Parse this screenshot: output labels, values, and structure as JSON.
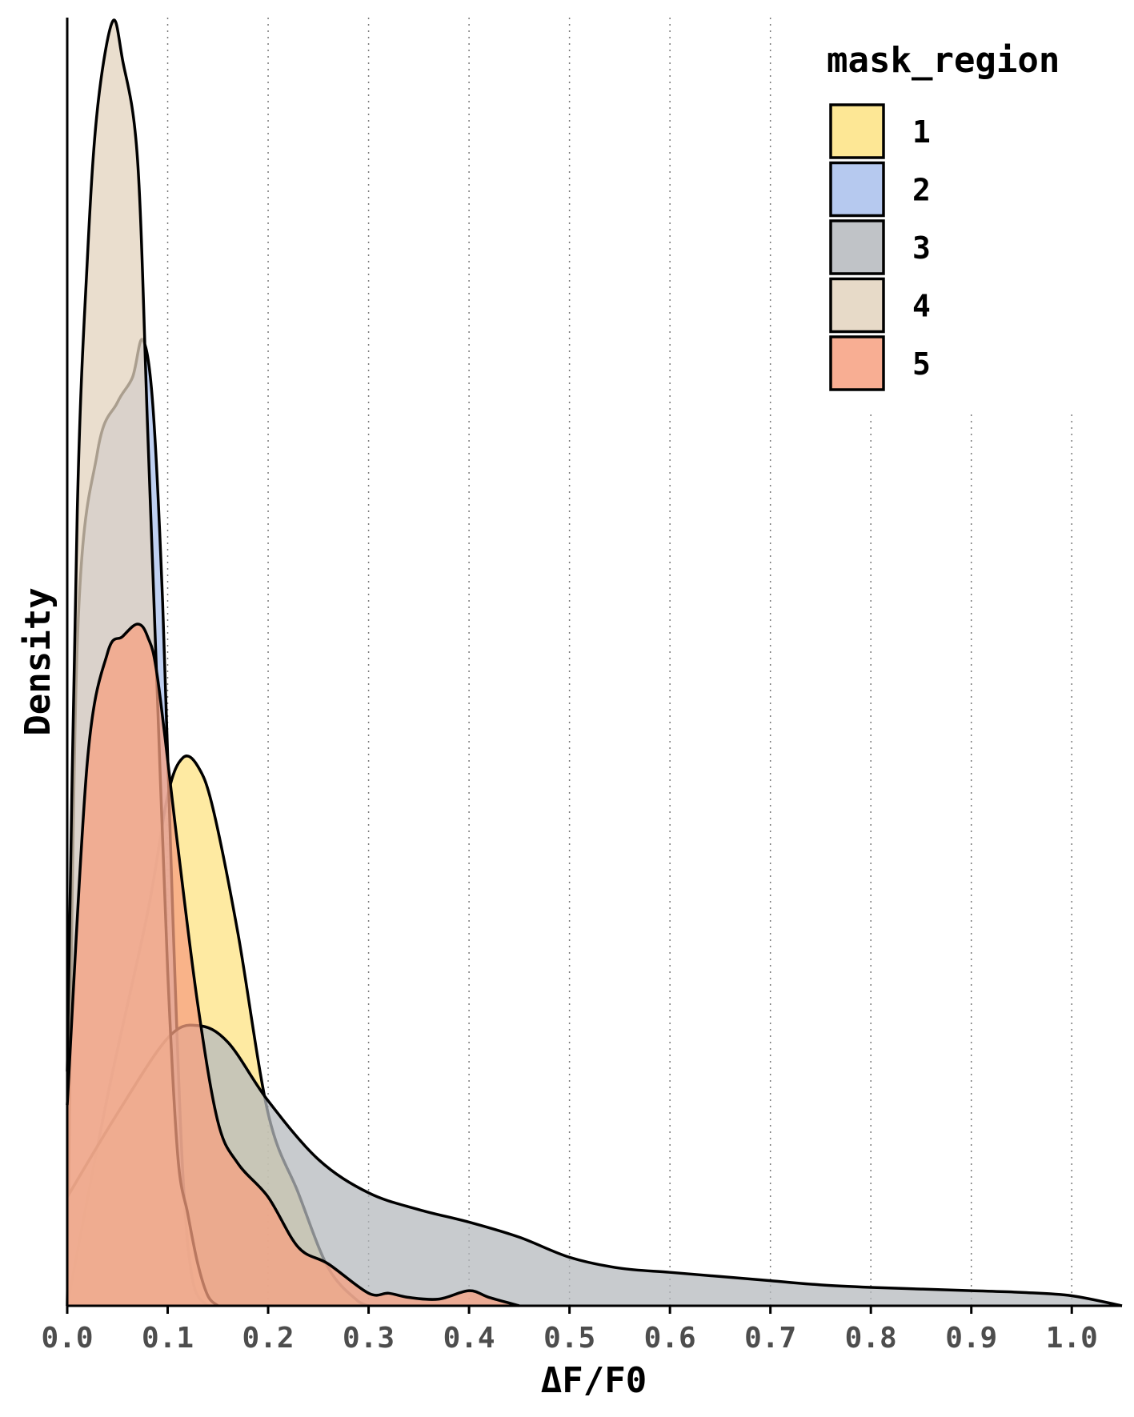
{
  "chart_data": {
    "type": "area",
    "xlabel": "ΔF/F0",
    "ylabel": "Density",
    "xlim": [
      0,
      1.05
    ],
    "ylim": [
      0,
      15.4
    ],
    "x_ticks": [
      "0.0",
      "0.1",
      "0.2",
      "0.3",
      "0.4",
      "0.5",
      "0.6",
      "0.7",
      "0.8",
      "0.9",
      "1.0"
    ],
    "y_ticks": [],
    "grid": "vertical dotted",
    "legend": {
      "title": "mask_region",
      "position": "top-right",
      "entries": [
        "1",
        "2",
        "3",
        "4",
        "5"
      ]
    },
    "series": [
      {
        "name": "1",
        "color": "#fde383",
        "x": [
          0,
          0.04,
          0.08,
          0.1,
          0.115,
          0.13,
          0.145,
          0.17,
          0.2,
          0.23,
          0.26,
          0.29,
          0.3
        ],
        "values": [
          0,
          2.5,
          4.7,
          6.1,
          6.55,
          6.45,
          5.95,
          4.45,
          2.3,
          1.35,
          0.45,
          0.05,
          0
        ]
      },
      {
        "name": "2",
        "color": "#a9c0ec",
        "x": [
          0,
          0.01,
          0.03,
          0.05,
          0.065,
          0.075,
          0.085,
          0.095,
          0.105,
          0.115,
          0.125,
          0.14
        ],
        "values": [
          0,
          7.9,
          10.2,
          10.8,
          11.1,
          11.55,
          10.8,
          8.4,
          4.7,
          1.6,
          0.3,
          0
        ]
      },
      {
        "name": "3",
        "color": "#b5b9bd",
        "x": [
          0,
          0.05,
          0.1,
          0.13,
          0.16,
          0.2,
          0.25,
          0.3,
          0.35,
          0.4,
          0.45,
          0.5,
          0.55,
          0.6,
          0.65,
          0.7,
          0.75,
          0.8,
          0.85,
          0.9,
          0.95,
          1.0,
          1.05
        ],
        "values": [
          1.3,
          2.3,
          3.2,
          3.35,
          3.15,
          2.45,
          1.75,
          1.35,
          1.15,
          1.0,
          0.82,
          0.58,
          0.45,
          0.4,
          0.35,
          0.3,
          0.25,
          0.22,
          0.2,
          0.18,
          0.16,
          0.12,
          0
        ]
      },
      {
        "name": "4",
        "color": "#e3d3be",
        "x": [
          0,
          0.01,
          0.02,
          0.03,
          0.045,
          0.055,
          0.07,
          0.08,
          0.09,
          0.1,
          0.11,
          0.12,
          0.13,
          0.14,
          0.15
        ],
        "values": [
          2.8,
          9.5,
          12.5,
          14.3,
          15.35,
          14.9,
          13.7,
          10.5,
          7.2,
          4.0,
          1.8,
          1.1,
          0.5,
          0.12,
          0
        ]
      },
      {
        "name": "5",
        "color": "#f7a080",
        "x": [
          0,
          0.02,
          0.04,
          0.055,
          0.07,
          0.08,
          0.09,
          0.11,
          0.13,
          0.15,
          0.17,
          0.2,
          0.23,
          0.26,
          0.3,
          0.32,
          0.34,
          0.37,
          0.4,
          0.42,
          0.45
        ],
        "values": [
          2.4,
          6.5,
          7.8,
          8.0,
          8.15,
          8.0,
          7.5,
          5.5,
          3.6,
          2.2,
          1.7,
          1.3,
          0.7,
          0.5,
          0.15,
          0.15,
          0.1,
          0.08,
          0.18,
          0.1,
          0
        ]
      }
    ]
  }
}
